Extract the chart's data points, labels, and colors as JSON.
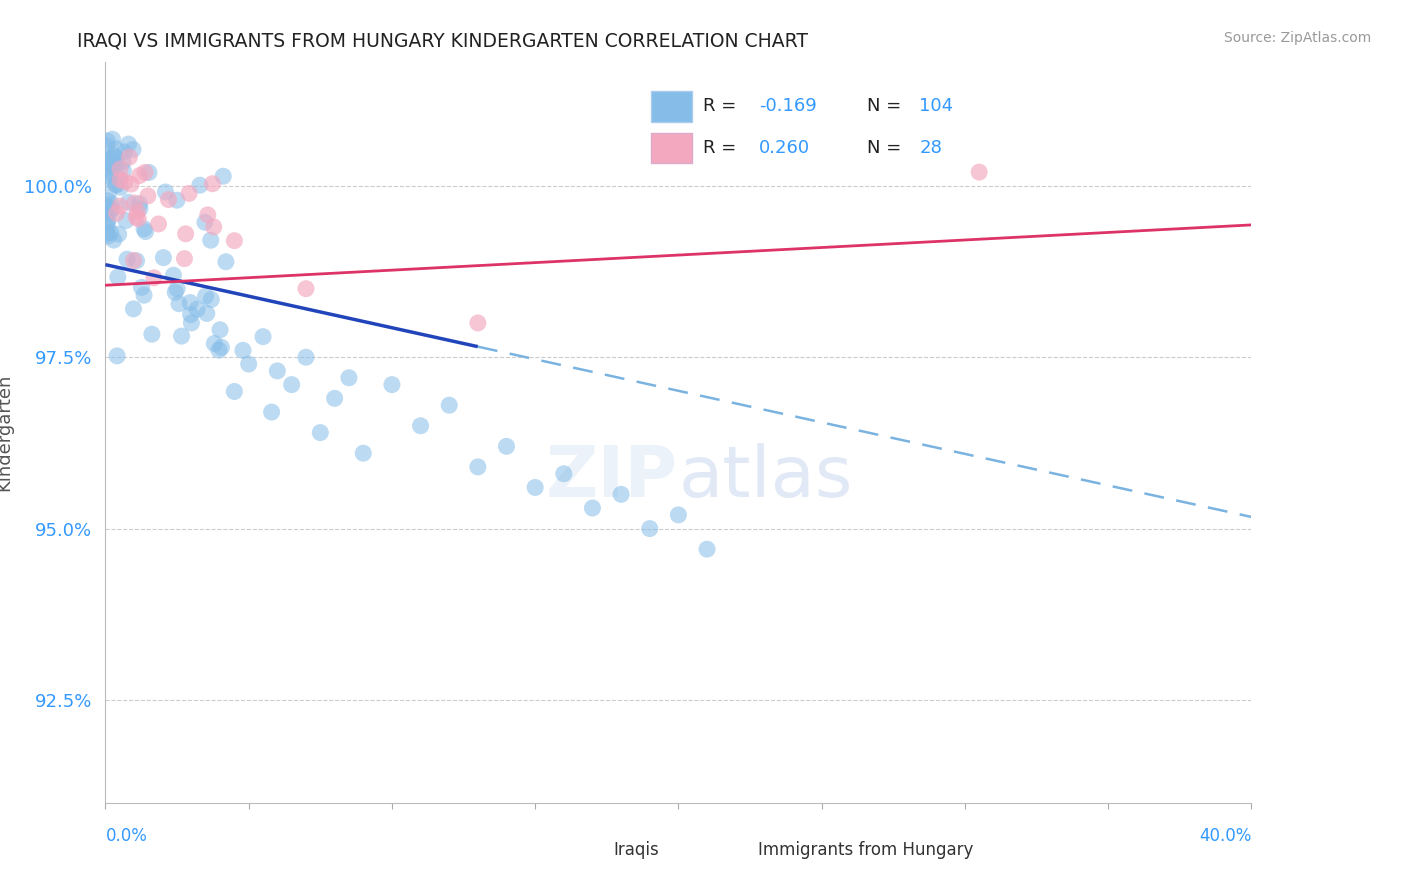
{
  "title": "IRAQI VS IMMIGRANTS FROM HUNGARY KINDERGARTEN CORRELATION CHART",
  "source_text": "Source: ZipAtlas.com",
  "ylabel_label": "Kindergarten",
  "xlim": [
    0.0,
    40.0
  ],
  "ylim": [
    91.0,
    101.8
  ],
  "yticks": [
    92.5,
    95.0,
    97.5,
    100.0
  ],
  "ytick_labels": [
    "92.5%",
    "95.0%",
    "97.5%",
    "100.0%"
  ],
  "blue_R": -0.169,
  "blue_N": 104,
  "pink_R": 0.26,
  "pink_N": 28,
  "blue_color": "#85bce8",
  "pink_color": "#f4a8bf",
  "blue_line_color": "#2244bb",
  "blue_dash_color": "#7ab3e0",
  "pink_line_color": "#dd3366",
  "legend_label_blue": "Iraqis",
  "legend_label_pink": "Immigrants from Hungary",
  "blue_line_x0": 0.0,
  "blue_line_y0": 98.85,
  "blue_line_slope": -0.092,
  "blue_solid_end_x": 13.0,
  "pink_line_x0": 0.0,
  "pink_line_y0": 98.55,
  "pink_line_slope": 0.022
}
